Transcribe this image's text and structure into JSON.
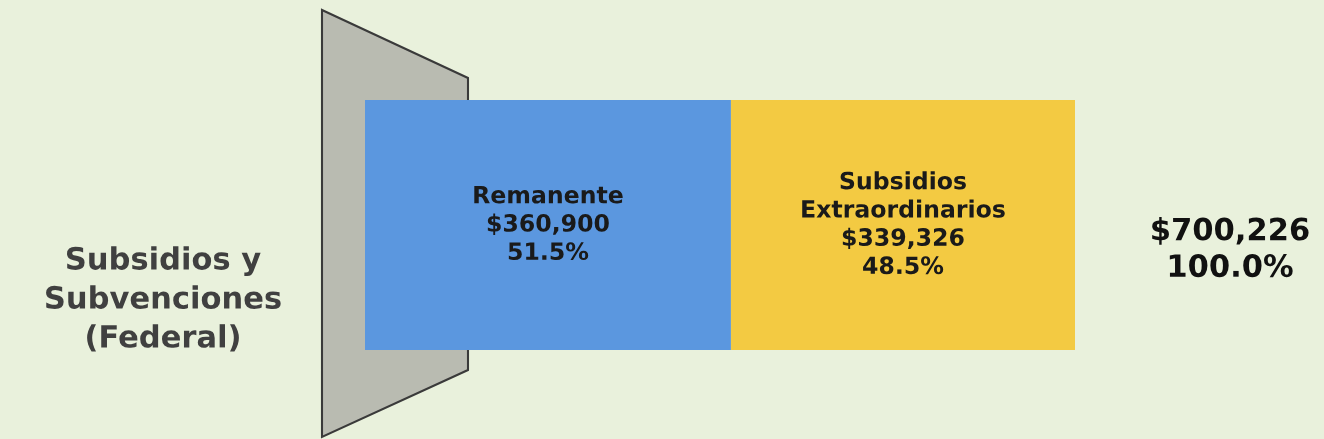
{
  "chart_data": {
    "type": "bar",
    "orientation": "horizontal",
    "stacked": true,
    "categories": [
      null
    ],
    "ylabel": "Subsidios y\nSubvenciones\n(Federal)",
    "series": [
      {
        "name": "Remanente",
        "color": "#5b97df",
        "values": [
          360900
        ],
        "value_labels": [
          "$360,900\n51.5%"
        ]
      },
      {
        "name": "Subsidios\nExtraordinarios",
        "color": "#f3ca42",
        "values": [
          339326
        ],
        "value_labels": [
          "$339,326\n48.5%"
        ]
      }
    ],
    "totals": [
      "$700,226\n100.0%"
    ],
    "legend": false
  }
}
